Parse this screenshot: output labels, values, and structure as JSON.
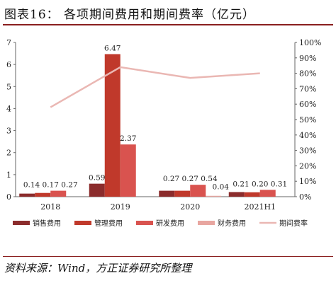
{
  "title": "图表16：   各项期间费用和期间费率（亿元）",
  "source": "资料来源：Wind，方正证券研究所整理",
  "chart_data": {
    "type": "bar",
    "categories": [
      "2018",
      "2019",
      "2020",
      "2021H1"
    ],
    "series": [
      {
        "name": "销售费用",
        "kind": "bar",
        "axis": "left",
        "color": "#8b2c2c",
        "values": [
          0.14,
          0.59,
          0.27,
          0.21
        ]
      },
      {
        "name": "管理费用",
        "kind": "bar",
        "axis": "left",
        "color": "#c0392b",
        "values": [
          0.17,
          6.47,
          0.27,
          0.2
        ]
      },
      {
        "name": "研发费用",
        "kind": "bar",
        "axis": "left",
        "color": "#d9534f",
        "values": [
          0.27,
          2.37,
          0.54,
          0.31
        ]
      },
      {
        "name": "财务费用",
        "kind": "bar",
        "axis": "left",
        "color": "#e8a6a0",
        "values": [
          null,
          null,
          0.04,
          null
        ]
      },
      {
        "name": "期间费率",
        "kind": "line",
        "axis": "right",
        "color": "#eab7b3",
        "values": [
          58,
          84,
          77,
          80
        ]
      }
    ],
    "data_labels": [
      {
        "category": "2018",
        "text": "0.14 0.17 0.27"
      },
      {
        "category": "2019",
        "series": "销售费用",
        "text": "0.59"
      },
      {
        "category": "2019",
        "series": "管理费用",
        "text": "6.47"
      },
      {
        "category": "2019",
        "series": "研发费用",
        "text": "2.37"
      },
      {
        "category": "2020",
        "series": "财务费用",
        "text": "0.04"
      },
      {
        "category": "2020",
        "text": "0.27 0.27 0.54"
      },
      {
        "category": "2021H1",
        "text": "0.21 0.20 0.31"
      }
    ],
    "y_left": {
      "min": 0,
      "max": 7,
      "ticks": [
        "0",
        "1",
        "2",
        "3",
        "4",
        "5",
        "6",
        "7"
      ]
    },
    "y_right": {
      "min": 0,
      "max": 100,
      "ticks": [
        "0%",
        "10%",
        "20%",
        "30%",
        "40%",
        "50%",
        "60%",
        "70%",
        "80%",
        "90%",
        "100%"
      ]
    },
    "grid": false,
    "legend_position": "bottom"
  }
}
